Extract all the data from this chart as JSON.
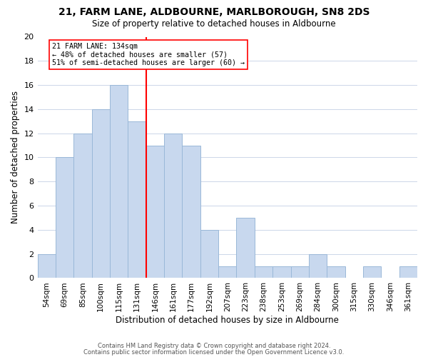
{
  "title": "21, FARM LANE, ALDBOURNE, MARLBOROUGH, SN8 2DS",
  "subtitle": "Size of property relative to detached houses in Aldbourne",
  "xlabel": "Distribution of detached houses by size in Aldbourne",
  "ylabel": "Number of detached properties",
  "bar_color": "#c8d8ee",
  "bar_edge_color": "#9ab8d8",
  "categories": [
    "54sqm",
    "69sqm",
    "85sqm",
    "100sqm",
    "115sqm",
    "131sqm",
    "146sqm",
    "161sqm",
    "177sqm",
    "192sqm",
    "207sqm",
    "223sqm",
    "238sqm",
    "253sqm",
    "269sqm",
    "284sqm",
    "300sqm",
    "315sqm",
    "330sqm",
    "346sqm",
    "361sqm"
  ],
  "values": [
    2,
    10,
    12,
    14,
    16,
    13,
    11,
    12,
    11,
    4,
    1,
    5,
    1,
    1,
    1,
    2,
    1,
    0,
    1,
    0,
    1
  ],
  "vline_x": 5.5,
  "annotation_title": "21 FARM LANE: 134sqm",
  "annotation_line1": "← 48% of detached houses are smaller (57)",
  "annotation_line2": "51% of semi-detached houses are larger (60) →",
  "ylim": [
    0,
    20
  ],
  "yticks": [
    0,
    2,
    4,
    6,
    8,
    10,
    12,
    14,
    16,
    18,
    20
  ],
  "footer1": "Contains HM Land Registry data © Crown copyright and database right 2024.",
  "footer2": "Contains public sector information licensed under the Open Government Licence v3.0.",
  "background_color": "#ffffff",
  "grid_color": "#ccd6e8"
}
